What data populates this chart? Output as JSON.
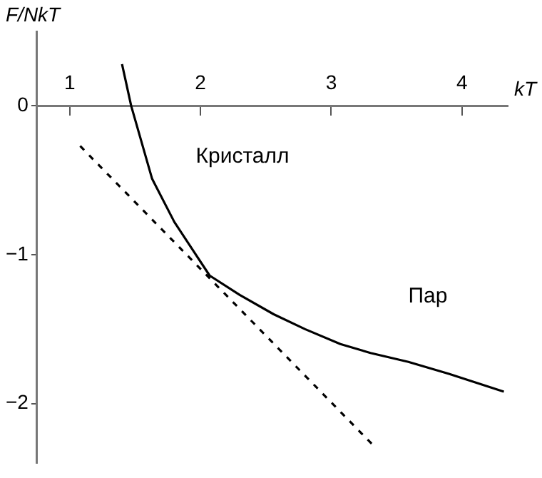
{
  "chart_data": {
    "type": "line",
    "xlabel": "kT",
    "ylabel": "F/NkT",
    "xlim": [
      0.75,
      4.35
    ],
    "ylim": [
      -2.4,
      0.5
    ],
    "xticks": [
      1,
      2,
      3,
      4
    ],
    "yticks": [
      -2,
      -1,
      0
    ],
    "grid": false,
    "legend": false,
    "marker": "none",
    "series": [
      {
        "color": "#000000",
        "line_style": "solid",
        "x": [
          1.4,
          1.47,
          1.63,
          1.8,
          1.95,
          2.07,
          2.3,
          2.56,
          2.8,
          3.07,
          3.3,
          3.59,
          3.9,
          4.32
        ],
        "values": [
          0.28,
          0,
          -0.49,
          -0.78,
          -0.98,
          -1.14,
          -1.27,
          -1.4,
          -1.5,
          -1.6,
          -1.66,
          -1.72,
          -1.8,
          -1.92
        ]
      },
      {
        "color": "#000000",
        "line_style": "dashed",
        "x": [
          1.08,
          3.31
        ],
        "values": [
          -0.27,
          -2.27
        ]
      }
    ],
    "annotations": [
      "Кристалл",
      "Пар"
    ]
  }
}
